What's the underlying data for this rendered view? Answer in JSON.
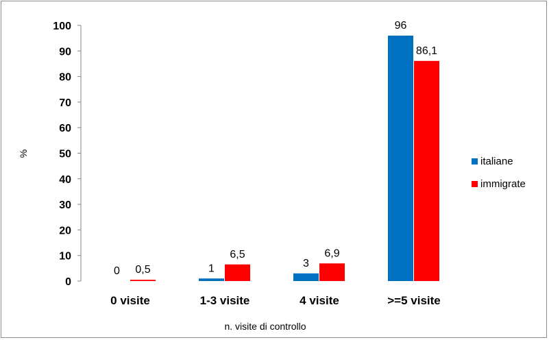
{
  "chart_data": {
    "type": "bar",
    "categories": [
      "0 visite",
      "1-3 visite",
      "4 visite",
      ">=5 visite"
    ],
    "series": [
      {
        "name": "italiane",
        "values": [
          0,
          1,
          3,
          96
        ],
        "labels": [
          "0",
          "1",
          "3",
          "96"
        ],
        "color": "#0070c0"
      },
      {
        "name": "immigrate",
        "values": [
          0.5,
          6.5,
          6.9,
          86.1
        ],
        "labels": [
          "0,5",
          "6,5",
          "6,9",
          "86,1"
        ],
        "color": "#ff0000"
      }
    ],
    "xlabel": "n. visite di controllo",
    "ylabel": "%",
    "ylim": [
      0,
      100
    ],
    "yticks": [
      "0",
      "10",
      "20",
      "30",
      "40",
      "50",
      "60",
      "70",
      "80",
      "90",
      "100"
    ],
    "grid": false,
    "legend_position": "right"
  }
}
